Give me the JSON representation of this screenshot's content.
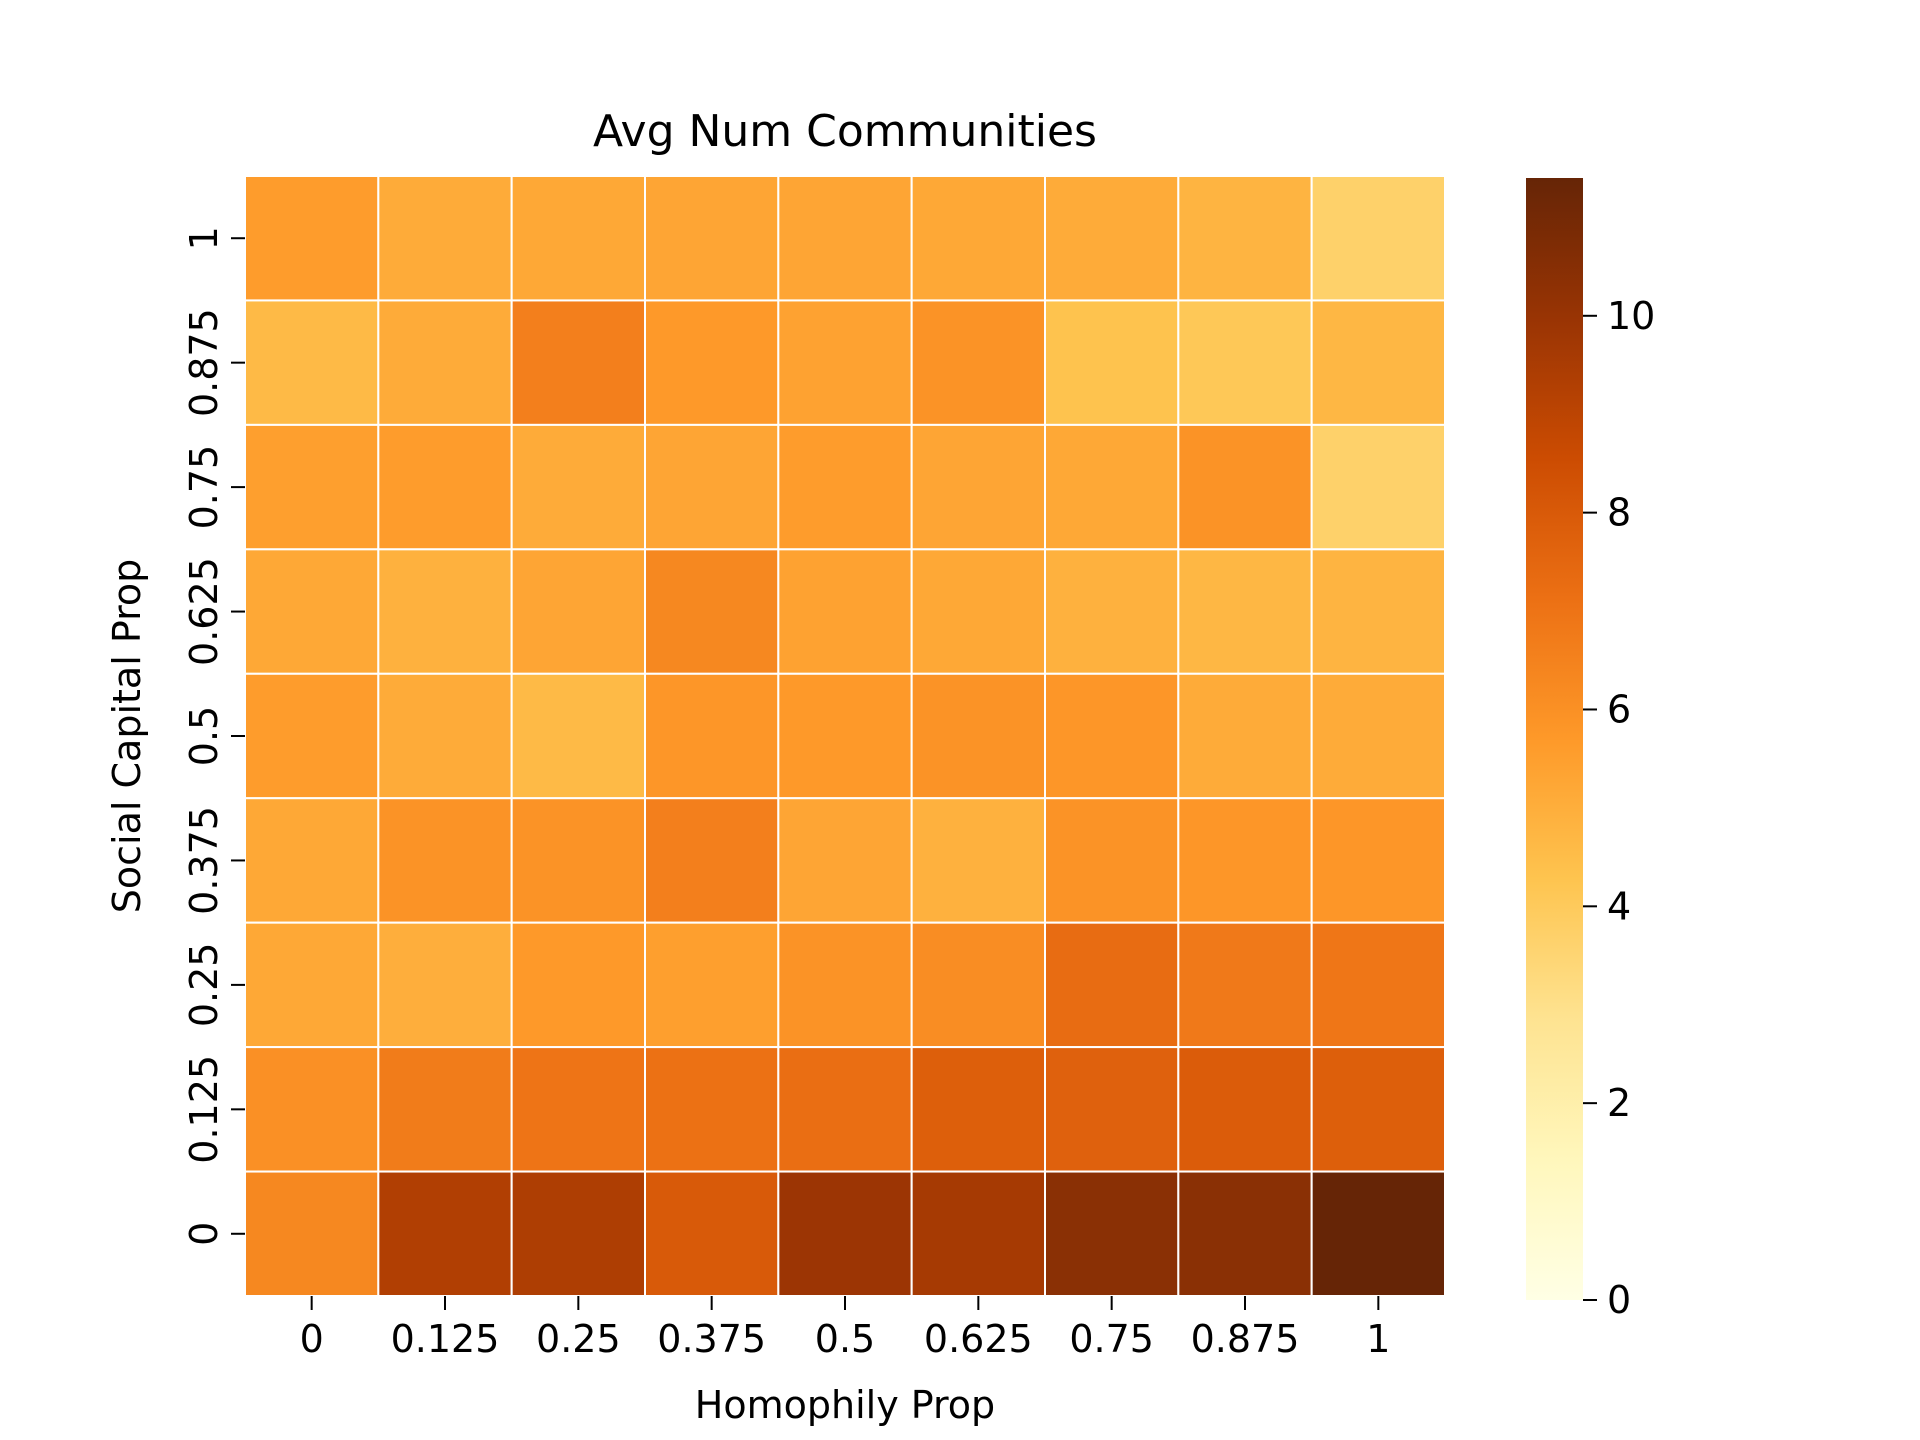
{
  "chart_data": {
    "type": "heatmap",
    "title": "Avg Num Communities",
    "xlabel": "Homophily Prop",
    "ylabel": "Social Capital Prop",
    "x_categories": [
      "0",
      "0.125",
      "0.25",
      "0.375",
      "0.5",
      "0.625",
      "0.75",
      "0.875",
      "1"
    ],
    "y_categories_top_to_bottom": [
      "1",
      "0.875",
      "0.75",
      "0.625",
      "0.5",
      "0.375",
      "0.25",
      "0.125",
      "0"
    ],
    "values_top_to_bottom": [
      [
        5.6,
        5.1,
        5.2,
        5.3,
        5.3,
        5.2,
        5.1,
        4.8,
        3.7
      ],
      [
        4.6,
        5.1,
        6.6,
        5.7,
        5.4,
        5.9,
        4.3,
        4.1,
        4.7
      ],
      [
        5.5,
        5.6,
        5.1,
        5.3,
        5.6,
        5.3,
        5.2,
        5.9,
        3.7
      ],
      [
        5.2,
        4.9,
        5.3,
        6.3,
        5.4,
        5.2,
        4.9,
        4.7,
        4.8
      ],
      [
        5.6,
        5.1,
        4.6,
        5.8,
        5.7,
        5.9,
        5.8,
        5.1,
        5.1
      ],
      [
        5.2,
        5.9,
        5.9,
        6.6,
        5.3,
        4.9,
        5.9,
        5.8,
        5.8
      ],
      [
        5.2,
        5.0,
        5.7,
        5.5,
        5.9,
        6.1,
        7.3,
        6.8,
        6.9
      ],
      [
        6.0,
        6.7,
        7.0,
        7.1,
        7.2,
        7.8,
        7.7,
        7.9,
        7.8
      ],
      [
        6.3,
        9.3,
        9.4,
        8.0,
        9.9,
        9.6,
        10.4,
        10.4,
        11.4
      ]
    ],
    "colormap": "YlOrBr",
    "colorbar": {
      "vmin": 0,
      "vmax": 11.4,
      "ticks": [
        0,
        2,
        4,
        6,
        8,
        10
      ]
    },
    "grid": true,
    "cell_border_color": "#ffffff"
  }
}
